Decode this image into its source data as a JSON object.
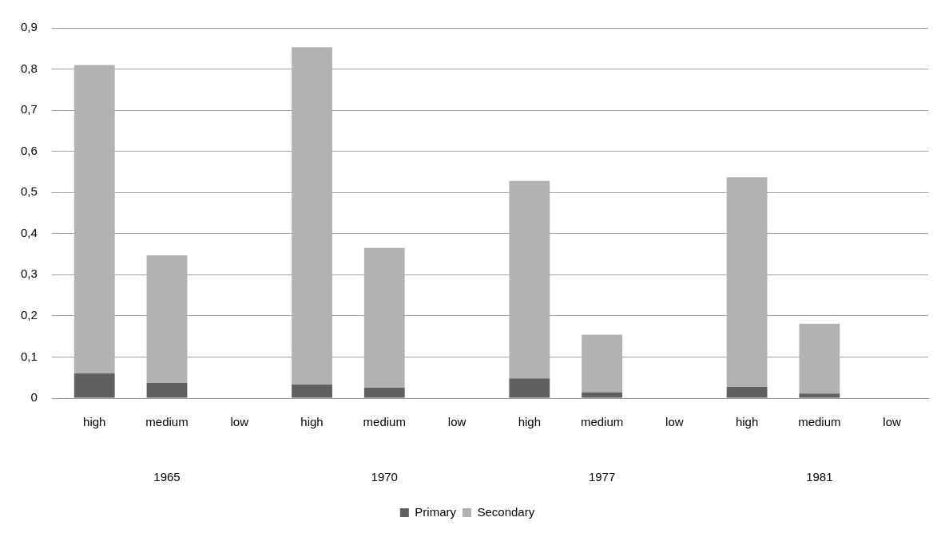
{
  "chart_data": {
    "type": "bar",
    "stacked": true,
    "categories": [
      "high",
      "medium",
      "low",
      "high",
      "medium",
      "low",
      "high",
      "medium",
      "low",
      "high",
      "medium",
      "low"
    ],
    "series": [
      {
        "name": "Primary",
        "color": "#606060",
        "values": [
          0.06,
          0.037,
          0,
          0.033,
          0.025,
          0,
          0.048,
          0.014,
          0,
          0.027,
          0.011,
          0
        ]
      },
      {
        "name": "Secondary",
        "color": "#b2b2b2",
        "values": [
          0.75,
          0.31,
          0,
          0.82,
          0.34,
          0,
          0.48,
          0.14,
          0,
          0.51,
          0.17,
          0
        ]
      }
    ],
    "ylim": [
      0,
      0.9
    ],
    "yticks": [
      0,
      {
        "value": 0.1,
        "label": "0,1"
      },
      {
        "value": 0.2,
        "label": "0,2"
      },
      {
        "value": 0.3,
        "label": "0,3"
      },
      {
        "value": 0.4,
        "label": "0,4"
      },
      {
        "value": 0.5,
        "label": "0,5"
      },
      {
        "value": 0.6,
        "label": "0,6"
      },
      {
        "value": 0.7,
        "label": "0,7"
      },
      {
        "value": 0.8,
        "label": "0,8"
      },
      {
        "value": 0.9,
        "label": "0,9"
      }
    ],
    "annotations": [
      "1965",
      "1970",
      "1977",
      "1981"
    ],
    "grid": "y",
    "legend": "bottom"
  }
}
